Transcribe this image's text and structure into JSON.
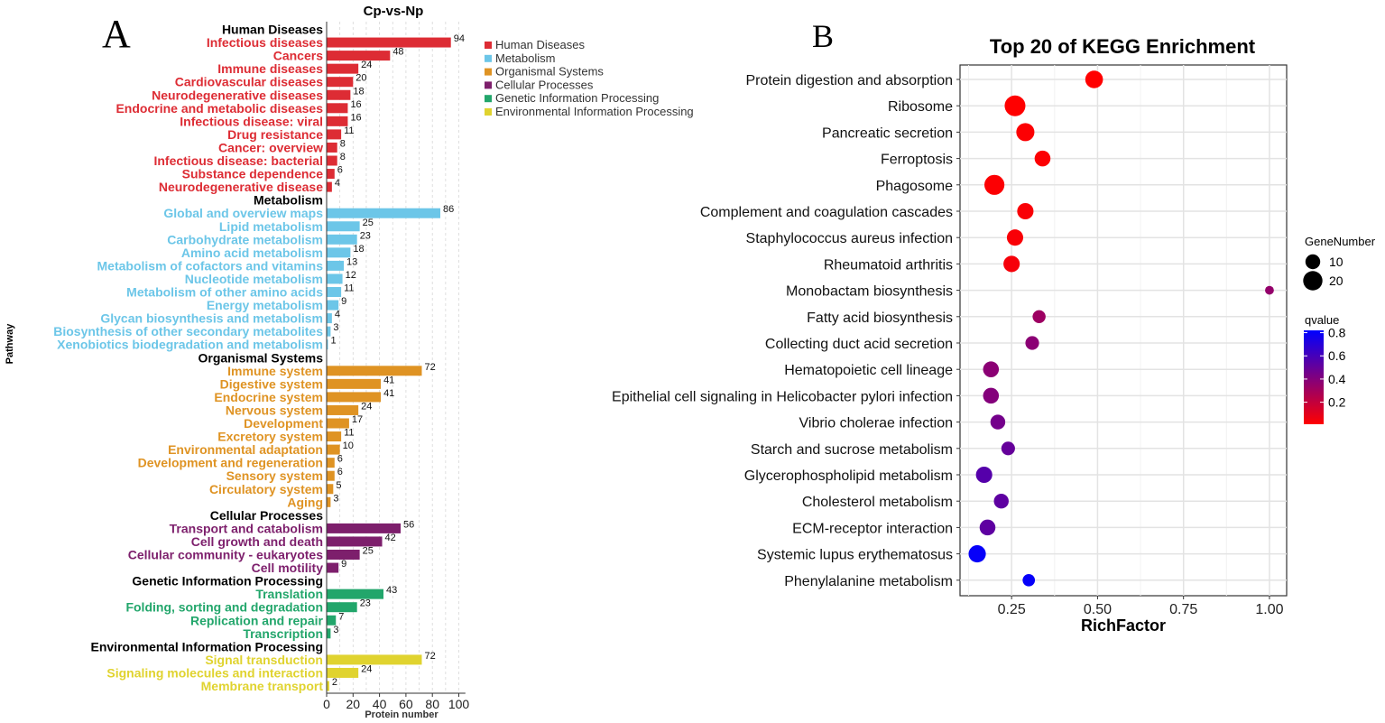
{
  "panels": {
    "a_letter": "A",
    "b_letter": "B"
  },
  "chart_data": [
    {
      "type": "bar",
      "orientation": "horizontal",
      "title": "Cp-vs-Np",
      "xlabel": "Protein number",
      "ylabel": "Pathway",
      "xlim": [
        0,
        105
      ],
      "xticks": [
        0,
        20,
        40,
        60,
        80,
        100
      ],
      "groups": [
        {
          "name": "Human Diseases",
          "color": "#dd2c34",
          "items": [
            {
              "label": "Infectious diseases",
              "value": 94
            },
            {
              "label": "Cancers",
              "value": 48
            },
            {
              "label": "Immune diseases",
              "value": 24
            },
            {
              "label": "Cardiovascular diseases",
              "value": 20
            },
            {
              "label": "Neurodegenerative diseases",
              "value": 18
            },
            {
              "label": "Endocrine and metabolic diseases",
              "value": 16
            },
            {
              "label": "Infectious disease: viral",
              "value": 16
            },
            {
              "label": "Drug resistance",
              "value": 11
            },
            {
              "label": "Cancer: overview",
              "value": 8
            },
            {
              "label": "Infectious disease: bacterial",
              "value": 8
            },
            {
              "label": "Substance dependence",
              "value": 6
            },
            {
              "label": "Neurodegenerative disease",
              "value": 4
            }
          ]
        },
        {
          "name": "Metabolism",
          "color": "#6cc6e8",
          "items": [
            {
              "label": "Global and overview maps",
              "value": 86
            },
            {
              "label": "Lipid metabolism",
              "value": 25
            },
            {
              "label": "Carbohydrate metabolism",
              "value": 23
            },
            {
              "label": "Amino acid metabolism",
              "value": 18
            },
            {
              "label": "Metabolism of cofactors and vitamins",
              "value": 13
            },
            {
              "label": "Nucleotide metabolism",
              "value": 12
            },
            {
              "label": "Metabolism of other amino acids",
              "value": 11
            },
            {
              "label": "Energy metabolism",
              "value": 9
            },
            {
              "label": "Glycan biosynthesis and metabolism",
              "value": 4
            },
            {
              "label": "Biosynthesis of other secondary metabolites",
              "value": 3
            },
            {
              "label": "Xenobiotics biodegradation and metabolism",
              "value": 1
            }
          ]
        },
        {
          "name": "Organismal Systems",
          "color": "#df9323",
          "items": [
            {
              "label": "Immune system",
              "value": 72
            },
            {
              "label": "Digestive system",
              "value": 41
            },
            {
              "label": "Endocrine system",
              "value": 41
            },
            {
              "label": "Nervous system",
              "value": 24
            },
            {
              "label": "Development",
              "value": 17
            },
            {
              "label": "Excretory system",
              "value": 11
            },
            {
              "label": "Environmental adaptation",
              "value": 10
            },
            {
              "label": "Development and regeneration",
              "value": 6
            },
            {
              "label": "Sensory system",
              "value": 6
            },
            {
              "label": "Circulatory system",
              "value": 5
            },
            {
              "label": "Aging",
              "value": 3
            }
          ]
        },
        {
          "name": "Cellular Processes",
          "color": "#7d1f6c",
          "items": [
            {
              "label": "Transport and catabolism",
              "value": 56
            },
            {
              "label": "Cell growth and death",
              "value": 42
            },
            {
              "label": "Cellular community - eukaryotes",
              "value": 25
            },
            {
              "label": "Cell motility",
              "value": 9
            }
          ]
        },
        {
          "name": "Genetic Information Processing",
          "color": "#22a66b",
          "items": [
            {
              "label": "Translation",
              "value": 43
            },
            {
              "label": "Folding, sorting and degradation",
              "value": 23
            },
            {
              "label": "Replication and repair",
              "value": 7
            },
            {
              "label": "Transcription",
              "value": 3
            }
          ]
        },
        {
          "name": "Environmental Information Processing",
          "color": "#e0d32f",
          "items": [
            {
              "label": "Signal transduction",
              "value": 72
            },
            {
              "label": "Signaling molecules and interaction",
              "value": 24
            },
            {
              "label": "Membrane transport",
              "value": 2
            }
          ]
        }
      ],
      "legend": {
        "position": "right",
        "entries": [
          "Human Diseases",
          "Metabolism",
          "Organismal Systems",
          "Cellular Processes",
          "Genetic Information Processing",
          "Environmental Information Processing"
        ]
      }
    },
    {
      "type": "scatter",
      "title": "Top 20 of KEGG Enrichment",
      "xlabel": "RichFactor",
      "xlim": [
        0.1,
        1.05
      ],
      "xticks": [
        0.25,
        0.5,
        0.75,
        1.0
      ],
      "xtick_labels": [
        "0.25",
        "0.50",
        "0.75",
        "1.00"
      ],
      "grid": true,
      "points": [
        {
          "pathway": "Protein digestion and absorption",
          "rich_factor": 0.49,
          "gene_number": 16,
          "qvalue": 0.01
        },
        {
          "pathway": "Ribosome",
          "rich_factor": 0.26,
          "gene_number": 24,
          "qvalue": 0.01
        },
        {
          "pathway": "Pancreatic secretion",
          "rich_factor": 0.29,
          "gene_number": 17,
          "qvalue": 0.02
        },
        {
          "pathway": "Ferroptosis",
          "rich_factor": 0.34,
          "gene_number": 12,
          "qvalue": 0.02
        },
        {
          "pathway": "Phagosome",
          "rich_factor": 0.2,
          "gene_number": 22,
          "qvalue": 0.02
        },
        {
          "pathway": "Complement and coagulation cascades",
          "rich_factor": 0.29,
          "gene_number": 13,
          "qvalue": 0.03
        },
        {
          "pathway": "Staphylococcus aureus infection",
          "rich_factor": 0.26,
          "gene_number": 13,
          "qvalue": 0.03
        },
        {
          "pathway": "Rheumatoid arthritis",
          "rich_factor": 0.25,
          "gene_number": 13,
          "qvalue": 0.04
        },
        {
          "pathway": "Monobactam biosynthesis",
          "rich_factor": 1.0,
          "gene_number": 2,
          "qvalue": 0.35
        },
        {
          "pathway": "Fatty acid biosynthesis",
          "rich_factor": 0.33,
          "gene_number": 7,
          "qvalue": 0.32
        },
        {
          "pathway": "Collecting duct acid secretion",
          "rich_factor": 0.31,
          "gene_number": 8,
          "qvalue": 0.38
        },
        {
          "pathway": "Hematopoietic cell lineage",
          "rich_factor": 0.19,
          "gene_number": 12,
          "qvalue": 0.38
        },
        {
          "pathway": "Epithelial cell signaling in Helicobacter pylori infection",
          "rich_factor": 0.19,
          "gene_number": 12,
          "qvalue": 0.4
        },
        {
          "pathway": "Vibrio cholerae infection",
          "rich_factor": 0.21,
          "gene_number": 10,
          "qvalue": 0.45
        },
        {
          "pathway": "Starch and sucrose metabolism",
          "rich_factor": 0.24,
          "gene_number": 8,
          "qvalue": 0.5
        },
        {
          "pathway": "Glycerophospholipid metabolism",
          "rich_factor": 0.17,
          "gene_number": 13,
          "qvalue": 0.55
        },
        {
          "pathway": "Cholesterol metabolism",
          "rich_factor": 0.22,
          "gene_number": 10,
          "qvalue": 0.52
        },
        {
          "pathway": "ECM-receptor interaction",
          "rich_factor": 0.18,
          "gene_number": 12,
          "qvalue": 0.52
        },
        {
          "pathway": "Systemic lupus erythematosus",
          "rich_factor": 0.15,
          "gene_number": 15,
          "qvalue": 0.8
        },
        {
          "pathway": "Phenylalanine metabolism",
          "rich_factor": 0.3,
          "gene_number": 6,
          "qvalue": 0.8
        }
      ],
      "size_legend": {
        "title": "GeneNumber",
        "values": [
          10,
          20
        ]
      },
      "color_legend": {
        "title": "qvalue",
        "ticks": [
          0.2,
          0.4,
          0.6,
          0.8
        ],
        "low_color": "#ff0000",
        "high_color": "#0000ff",
        "range": [
          0.01,
          0.82
        ]
      }
    }
  ]
}
